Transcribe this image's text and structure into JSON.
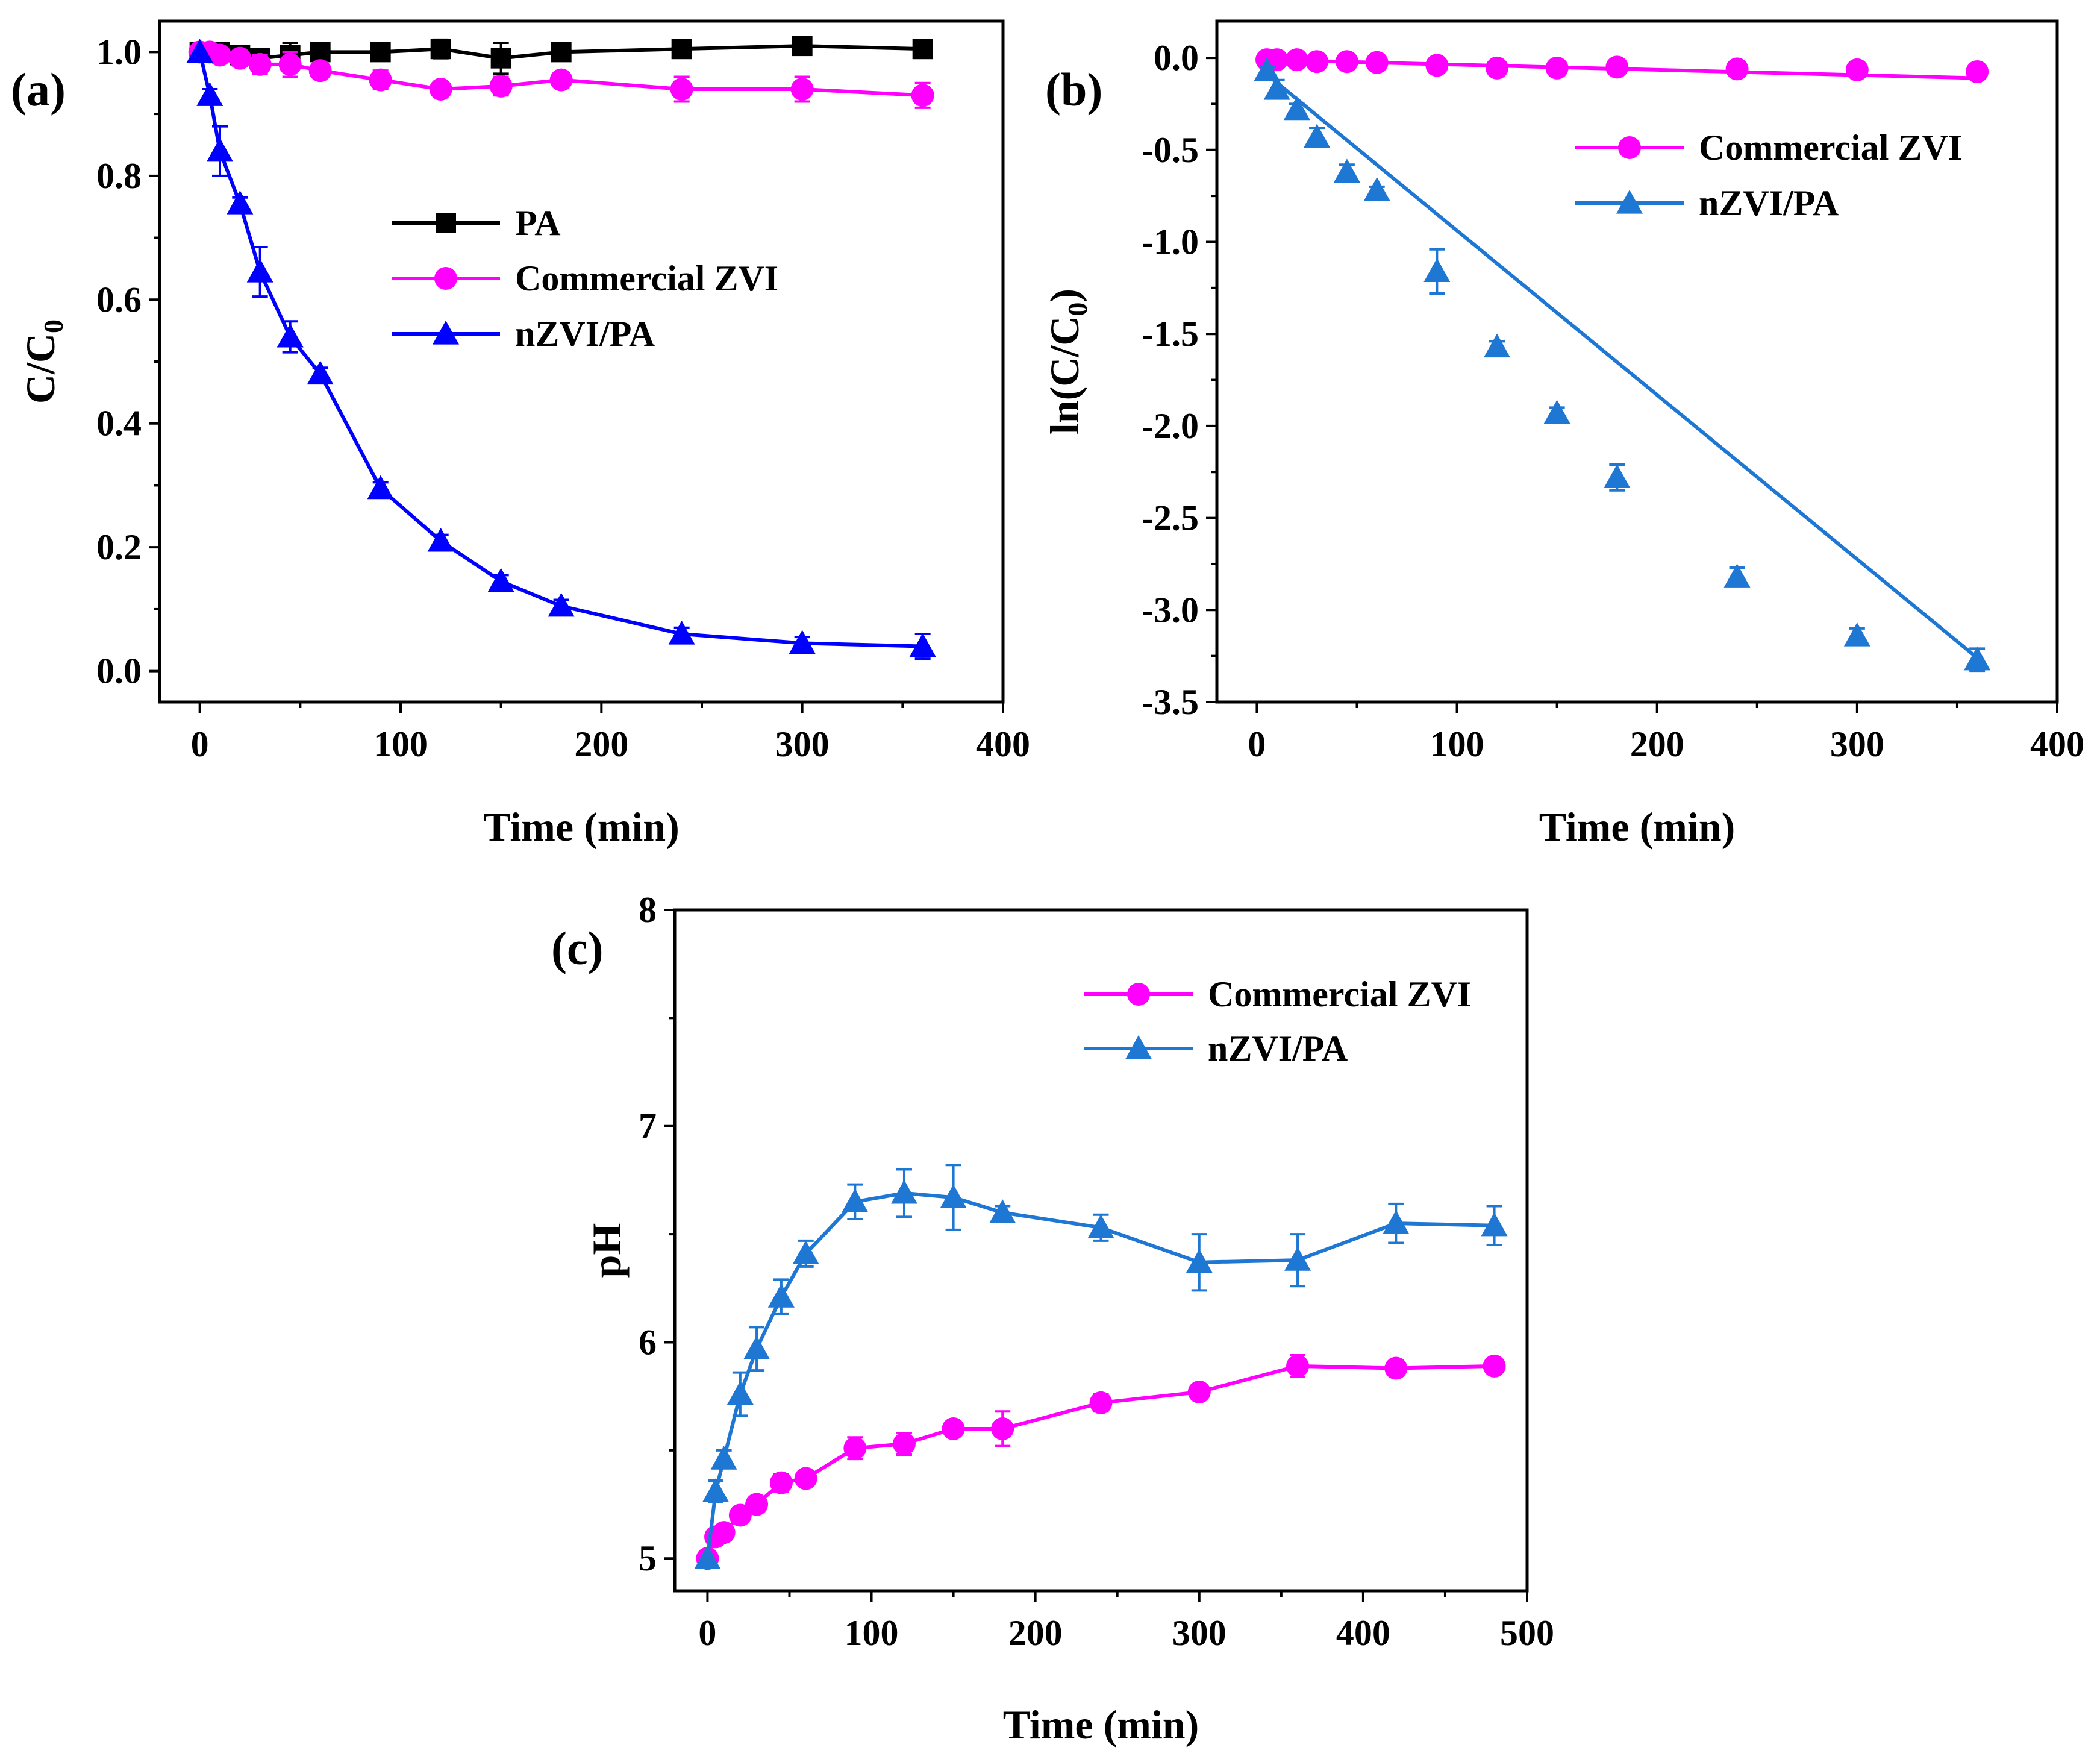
{
  "chart_data": [
    {
      "panel": "a",
      "panel_label": "(a)",
      "type": "line",
      "xlabel": "Time (min)",
      "ylabel_main": "C/C",
      "ylabel_sub": "0",
      "xlim": [
        -20,
        400
      ],
      "ylim": [
        -0.05,
        1.05
      ],
      "xticks": [
        0,
        100,
        200,
        300,
        400
      ],
      "xtick_labels": [
        "0",
        "100",
        "200",
        "300",
        "400"
      ],
      "yticks": [
        0.0,
        0.2,
        0.4,
        0.6,
        0.8,
        1.0
      ],
      "ytick_labels": [
        "0.0",
        "0.2",
        "0.4",
        "0.6",
        "0.8",
        "1.0"
      ],
      "legend_position": "center",
      "series": [
        {
          "name": "PA",
          "color": "#000000",
          "marker": "square",
          "x": [
            0,
            5,
            10,
            20,
            30,
            45,
            60,
            90,
            120,
            150,
            180,
            240,
            300,
            360
          ],
          "y": [
            1.0,
            1.0,
            1.0,
            0.995,
            0.99,
            0.995,
            1.0,
            1.0,
            1.005,
            0.99,
            1.0,
            1.005,
            1.01,
            1.005
          ],
          "err": [
            0.0,
            0.01,
            0.01,
            0.01,
            0.015,
            0.02,
            0.01,
            0.01,
            0.015,
            0.025,
            0.01,
            0.01,
            0.01,
            0.01
          ]
        },
        {
          "name": "Commercial ZVI",
          "color": "#ff00ff",
          "marker": "circle",
          "x": [
            0,
            5,
            10,
            20,
            30,
            45,
            60,
            90,
            120,
            150,
            180,
            240,
            300,
            360
          ],
          "y": [
            1.0,
            1.0,
            0.995,
            0.99,
            0.98,
            0.98,
            0.97,
            0.955,
            0.94,
            0.945,
            0.955,
            0.94,
            0.94,
            0.93
          ],
          "err": [
            0.0,
            0.01,
            0.01,
            0.01,
            0.015,
            0.02,
            0.01,
            0.015,
            0.01,
            0.015,
            0.01,
            0.02,
            0.02,
            0.02
          ]
        },
        {
          "name": "nZVI/PA",
          "color": "#0000ff",
          "marker": "triangle",
          "x": [
            0,
            5,
            10,
            20,
            30,
            45,
            60,
            90,
            120,
            150,
            180,
            240,
            300,
            360
          ],
          "y": [
            1.0,
            0.93,
            0.84,
            0.755,
            0.645,
            0.54,
            0.48,
            0.295,
            0.21,
            0.145,
            0.105,
            0.06,
            0.045,
            0.04
          ],
          "err": [
            0.0,
            0.01,
            0.04,
            0.01,
            0.04,
            0.025,
            0.01,
            0.01,
            0.01,
            0.01,
            0.01,
            0.01,
            0.01,
            0.02
          ]
        }
      ]
    },
    {
      "panel": "b",
      "panel_label": "(b)",
      "type": "scatter",
      "xlabel": "Time (min)",
      "ylabel_main": "ln(C/C",
      "ylabel_sub": "0",
      "ylabel_close": ")",
      "xlim": [
        -20,
        400
      ],
      "ylim": [
        -3.5,
        0.2
      ],
      "xticks": [
        0,
        100,
        200,
        300,
        400
      ],
      "xtick_labels": [
        "0",
        "100",
        "200",
        "300",
        "400"
      ],
      "yticks": [
        0.0,
        -0.5,
        -1.0,
        -1.5,
        -2.0,
        -2.5,
        -3.0,
        -3.5
      ],
      "ytick_labels": [
        "0.0",
        "-0.5",
        "-1.0",
        "-1.5",
        "-2.0",
        "-2.5",
        "-3.0",
        "-3.5"
      ],
      "legend_position": "top-right",
      "series": [
        {
          "name": "Commercial ZVI",
          "color": "#ff00ff",
          "marker": "circle",
          "x": [
            5,
            10,
            20,
            30,
            45,
            60,
            90,
            120,
            150,
            180,
            240,
            300,
            360
          ],
          "y": [
            -0.01,
            -0.01,
            -0.01,
            -0.02,
            -0.02,
            -0.025,
            -0.04,
            -0.055,
            -0.055,
            -0.05,
            -0.06,
            -0.065,
            -0.075
          ],
          "err": [
            0.01,
            0.01,
            0.01,
            0.01,
            0.01,
            0.01,
            0.01,
            0.01,
            0.01,
            0.01,
            0.01,
            0.01,
            0.01
          ],
          "fit": {
            "x": [
              5,
              360
            ],
            "y": [
              -0.01,
              -0.11
            ]
          }
        },
        {
          "name": "nZVI/PA",
          "color": "#1f77d4",
          "marker": "triangle",
          "x": [
            5,
            10,
            20,
            30,
            45,
            60,
            90,
            120,
            150,
            180,
            240,
            300,
            360
          ],
          "y": [
            -0.07,
            -0.17,
            -0.28,
            -0.43,
            -0.62,
            -0.72,
            -1.16,
            -1.57,
            -1.93,
            -2.28,
            -2.82,
            -3.14,
            -3.27
          ],
          "err": [
            0.02,
            0.05,
            0.03,
            0.05,
            0.04,
            0.02,
            0.12,
            0.03,
            0.03,
            0.07,
            0.05,
            0.04,
            0.06
          ],
          "fit": {
            "x": [
              5,
              360
            ],
            "y": [
              -0.09,
              -3.26
            ]
          }
        }
      ]
    },
    {
      "panel": "c",
      "panel_label": "(c)",
      "type": "line",
      "xlabel": "Time (min)",
      "ylabel": "pH",
      "xlim": [
        -20,
        500
      ],
      "ylim": [
        4.85,
        8.0
      ],
      "xticks": [
        0,
        100,
        200,
        300,
        400,
        500
      ],
      "xtick_labels": [
        "0",
        "100",
        "200",
        "300",
        "400",
        "500"
      ],
      "yticks": [
        5,
        6,
        7,
        8
      ],
      "ytick_labels": [
        "5",
        "6",
        "7",
        "8"
      ],
      "legend_position": "top-right",
      "series": [
        {
          "name": "Commercial ZVI",
          "color": "#ff00ff",
          "marker": "circle",
          "x": [
            0,
            5,
            10,
            20,
            30,
            45,
            60,
            90,
            120,
            150,
            180,
            240,
            300,
            360,
            420,
            480
          ],
          "y": [
            5.0,
            5.1,
            5.12,
            5.2,
            5.25,
            5.35,
            5.37,
            5.51,
            5.53,
            5.6,
            5.6,
            5.72,
            5.77,
            5.89,
            5.88,
            5.89
          ],
          "err": [
            0.0,
            0.02,
            0.02,
            0.03,
            0.03,
            0.04,
            0.03,
            0.05,
            0.05,
            0.03,
            0.08,
            0.04,
            0.02,
            0.05,
            0.02,
            0.03
          ]
        },
        {
          "name": "nZVI/PA",
          "color": "#1f77d4",
          "marker": "triangle",
          "x": [
            0,
            5,
            10,
            20,
            30,
            45,
            60,
            90,
            120,
            150,
            180,
            240,
            300,
            360,
            420,
            480
          ],
          "y": [
            5.0,
            5.31,
            5.46,
            5.76,
            5.97,
            6.21,
            6.41,
            6.65,
            6.69,
            6.67,
            6.6,
            6.53,
            6.37,
            6.38,
            6.55,
            6.54
          ],
          "err": [
            0.0,
            0.05,
            0.04,
            0.1,
            0.1,
            0.08,
            0.06,
            0.08,
            0.11,
            0.15,
            0.03,
            0.06,
            0.13,
            0.12,
            0.09,
            0.09
          ]
        }
      ]
    }
  ]
}
